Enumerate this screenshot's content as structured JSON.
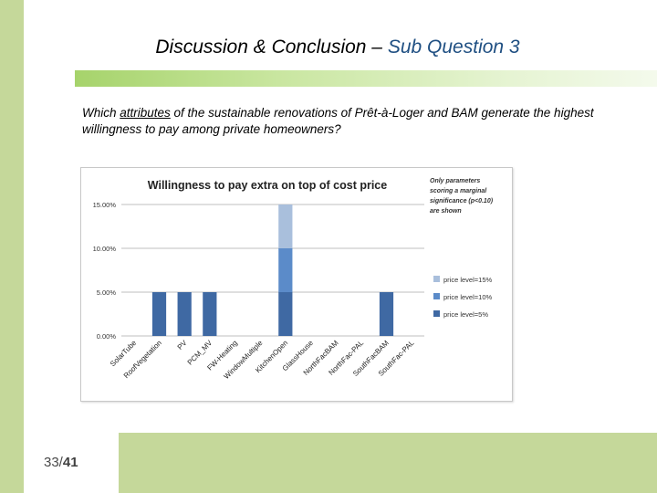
{
  "slide": {
    "title_main": "Discussion & Conclusion –",
    "title_sub": "Sub Question 3",
    "question_pre": "Which ",
    "question_underlined": "attributes",
    "question_post": " of the sustainable renovations of Prêt-à-Loger and BAM generate the highest willingness to pay among private homeowners?",
    "page_current": "33/",
    "page_total": "41"
  },
  "colors": {
    "accent_green": "#a6d36b",
    "band_green": "#c5d89a",
    "title_blue": "#1f4f82",
    "series_5": "#3f69a3",
    "series_10": "#5b8bc9",
    "series_15": "#a9bfdc"
  },
  "chart_data": {
    "type": "bar",
    "stacked": true,
    "title": "Willingness to pay extra on top of cost price",
    "note": "Only parameters scoring a marginal significance (p<0.10) are shown",
    "categories": [
      "SolarTube",
      "RoofVegetation",
      "PV",
      "PCM_MV",
      "FW-Heating",
      "WindowMultiple",
      "KitchenOpen",
      "GlassHouse",
      "NorthFacBAM",
      "NorthFac-PAL",
      "SouthFacBAM",
      "SouthFac-PAL"
    ],
    "series": [
      {
        "name": "price level=5%",
        "color": "#3f69a3",
        "values": [
          0,
          5,
          5,
          5,
          0,
          0,
          5,
          0,
          0,
          0,
          5,
          0
        ]
      },
      {
        "name": "price level=10%",
        "color": "#5b8bc9",
        "values": [
          0,
          0,
          0,
          0,
          0,
          0,
          5,
          0,
          0,
          0,
          0,
          0
        ]
      },
      {
        "name": "price level=15%",
        "color": "#a9bfdc",
        "values": [
          0,
          0,
          0,
          0,
          0,
          0,
          5,
          0,
          0,
          0,
          0,
          0
        ]
      }
    ],
    "legend_order": [
      "price level=15%",
      "price level=10%",
      "price level=5%"
    ],
    "ylim": [
      0,
      15
    ],
    "yticks": [
      "0.00%",
      "5.00%",
      "10.00%",
      "15.00%"
    ],
    "grid": true,
    "legend_position": "right"
  }
}
